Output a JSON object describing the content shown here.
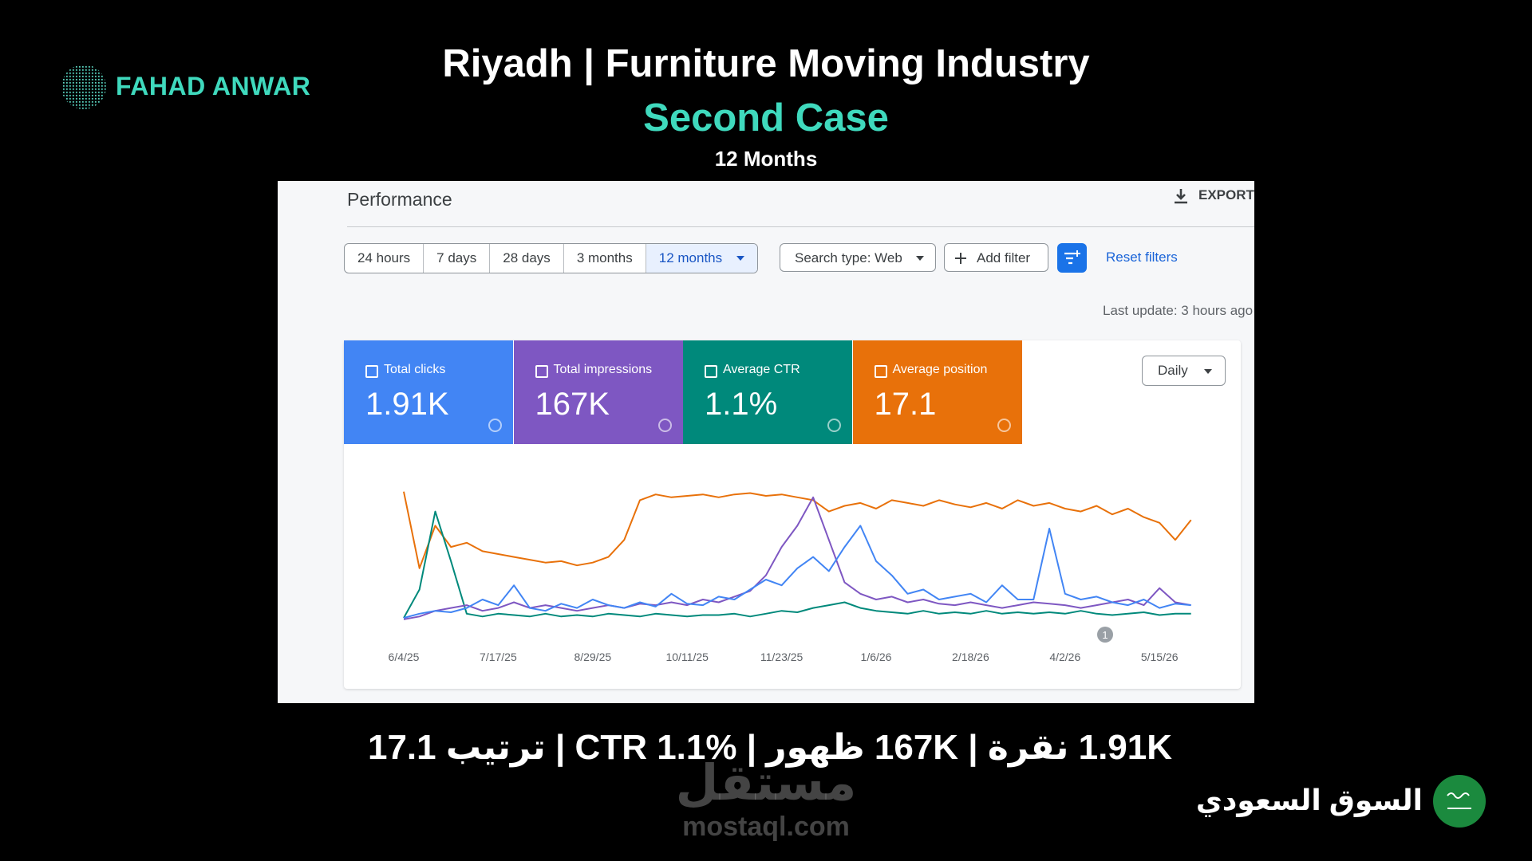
{
  "header": {
    "brand": "FAHAD ANWAR",
    "title": "Riyadh | Furniture Moving Industry",
    "subtitle": "Second Case",
    "period": "12 Months"
  },
  "performance": {
    "title": "Performance",
    "export": "EXPORT",
    "date_ranges": [
      "24 hours",
      "7 days",
      "28 days",
      "3 months",
      "12 months"
    ],
    "selected_range": 4,
    "search_type": "Search type: Web",
    "add_filter": "Add filter",
    "reset_filters": "Reset filters",
    "last_update": "Last update: 3 hours ago",
    "granularity": "Daily",
    "metrics": [
      {
        "label": "Total clicks",
        "value": "1.91K",
        "color": "#4285f4",
        "values": [
          5,
          8,
          10,
          9,
          12,
          18,
          14,
          28,
          12,
          10,
          15,
          12,
          18,
          14,
          12,
          16,
          13,
          22,
          15,
          14,
          20,
          18,
          25,
          32,
          28,
          40,
          48,
          38,
          55,
          70,
          45,
          35,
          22,
          25,
          18,
          20,
          22,
          16,
          28,
          18,
          18,
          68,
          22,
          18,
          20,
          16,
          14,
          18,
          12,
          15,
          14
        ]
      },
      {
        "label": "Total impressions",
        "value": "167K",
        "color": "#7e57c2",
        "values": [
          4,
          6,
          10,
          12,
          14,
          10,
          12,
          16,
          12,
          14,
          12,
          10,
          12,
          14,
          12,
          15,
          14,
          16,
          14,
          18,
          16,
          20,
          24,
          35,
          55,
          70,
          90,
          60,
          30,
          22,
          18,
          20,
          16,
          18,
          15,
          14,
          16,
          14,
          12,
          14,
          16,
          15,
          14,
          12,
          14,
          16,
          18,
          14,
          26,
          16,
          14
        ]
      },
      {
        "label": "Average CTR",
        "value": "1.1%",
        "color": "#00897b",
        "values": [
          5,
          25,
          80,
          45,
          8,
          6,
          8,
          7,
          6,
          8,
          6,
          7,
          6,
          8,
          7,
          6,
          8,
          7,
          6,
          7,
          7,
          8,
          6,
          8,
          10,
          9,
          12,
          14,
          16,
          12,
          10,
          9,
          8,
          10,
          8,
          9,
          8,
          10,
          8,
          9,
          8,
          9,
          8,
          10,
          8,
          7,
          8,
          9,
          7,
          8,
          8
        ]
      },
      {
        "label": "Average position",
        "value": "17.1",
        "color": "#e8710a",
        "values": [
          94,
          40,
          70,
          55,
          58,
          52,
          50,
          48,
          46,
          44,
          45,
          42,
          44,
          48,
          60,
          88,
          92,
          90,
          91,
          92,
          90,
          92,
          93,
          91,
          92,
          90,
          88,
          80,
          84,
          86,
          82,
          88,
          86,
          84,
          88,
          85,
          83,
          86,
          82,
          88,
          84,
          86,
          82,
          80,
          84,
          78,
          82,
          76,
          72,
          60,
          74
        ]
      }
    ],
    "chart": {
      "type": "line",
      "ylim": [
        0,
        100
      ],
      "draw_order": [
        3,
        2,
        1,
        0
      ],
      "xticks": [
        "6/4/25",
        "7/17/25",
        "8/29/25",
        "10/11/25",
        "11/23/25",
        "1/6/26",
        "2/18/26",
        "4/2/26",
        "5/15/26"
      ],
      "annotation": "1"
    }
  },
  "footer": {
    "summary": "1.91K نقرة | 167K ظهور | CTR 1.1% | ترتيب 17.1",
    "watermark": "مستقل",
    "watermark_url": "mostaql.com",
    "market": "السوق السعودي"
  }
}
